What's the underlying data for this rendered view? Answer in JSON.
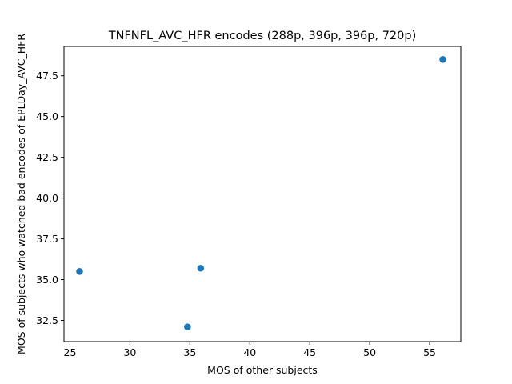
{
  "chart_data": {
    "type": "scatter",
    "title": "TNFNFL_AVC_HFR encodes (288p, 396p, 396p, 720p)",
    "xlabel": "MOS of other subjects",
    "ylabel": "MOS of subjects who watched bad encodes of EPLDay_AVC_HFR",
    "xlim": [
      24.5,
      57.6
    ],
    "ylim": [
      31.2,
      49.3
    ],
    "xticks": [
      25,
      30,
      35,
      40,
      45,
      50,
      55
    ],
    "yticks": [
      32.5,
      35.0,
      37.5,
      40.0,
      42.5,
      45.0,
      47.5
    ],
    "xtick_labels": [
      "25",
      "30",
      "35",
      "40",
      "45",
      "50",
      "55"
    ],
    "ytick_labels": [
      "32.5",
      "35.0",
      "37.5",
      "40.0",
      "42.5",
      "45.0",
      "47.5"
    ],
    "grid": false,
    "marker_color": "#1f77b4",
    "points": [
      {
        "x": 25.8,
        "y": 35.5
      },
      {
        "x": 34.8,
        "y": 32.1
      },
      {
        "x": 35.9,
        "y": 35.7
      },
      {
        "x": 56.1,
        "y": 48.5
      }
    ]
  }
}
